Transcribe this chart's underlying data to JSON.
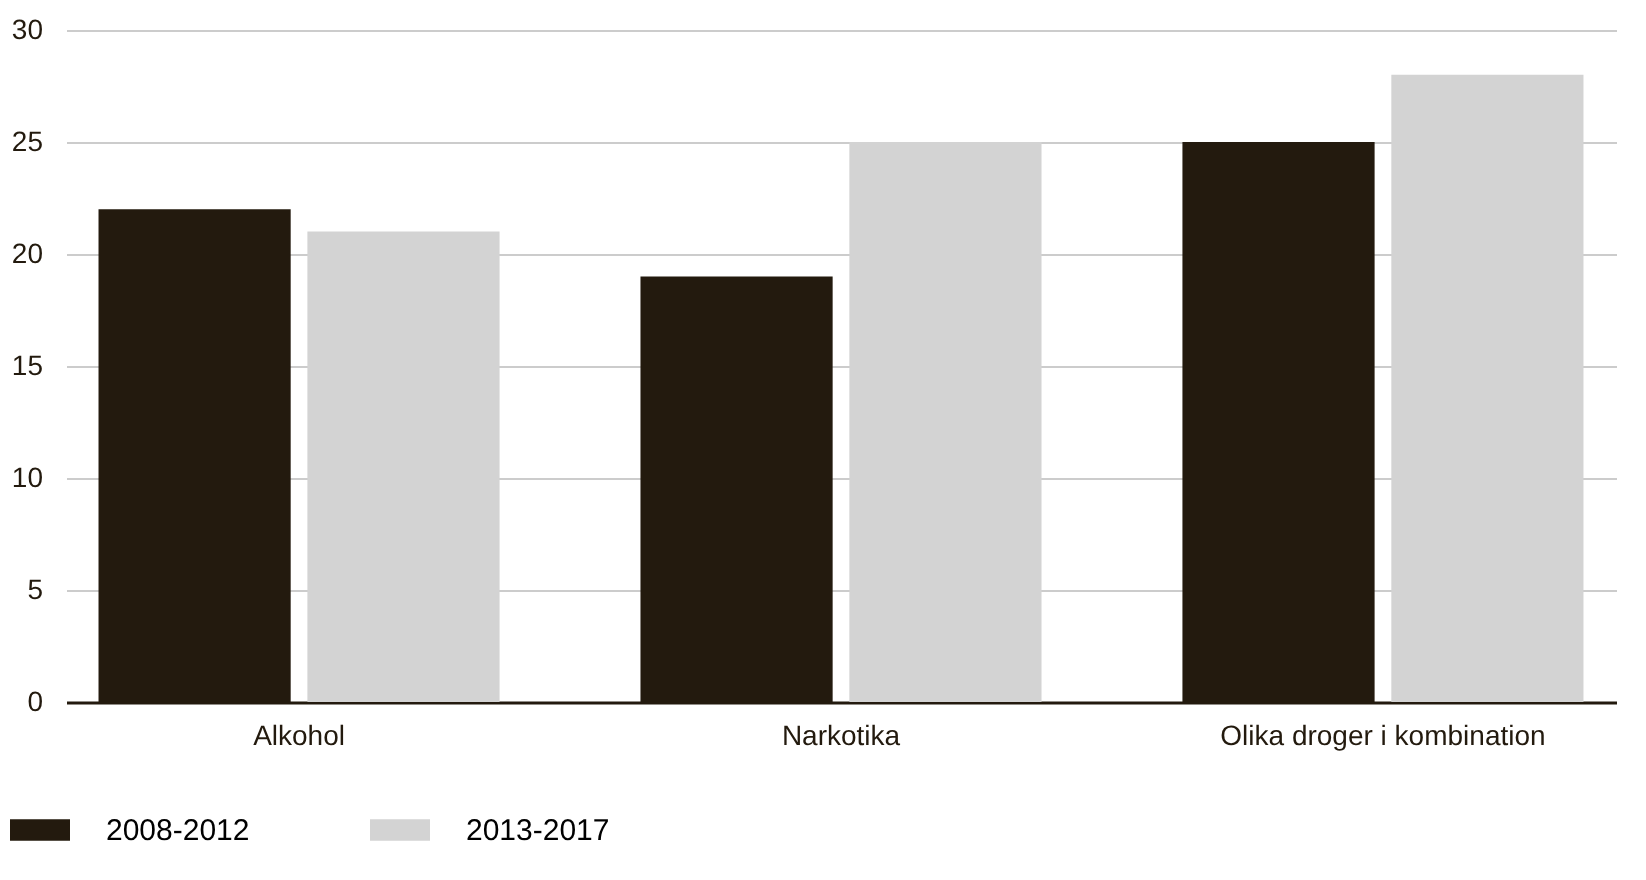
{
  "chart_data": {
    "type": "bar",
    "categories": [
      "Alkohol",
      "Narkotika",
      "Olika droger i kombination"
    ],
    "series": [
      {
        "name": "2008-2012",
        "color": "#231a0e",
        "values": [
          22,
          19,
          25
        ]
      },
      {
        "name": "2013-2017",
        "color": "#d3d3d3",
        "values": [
          21,
          25,
          28
        ]
      }
    ],
    "ylim": [
      0,
      30
    ],
    "yticks": [
      0,
      5,
      10,
      15,
      20,
      25,
      30
    ],
    "grid": "y",
    "legend": "bottom left"
  }
}
